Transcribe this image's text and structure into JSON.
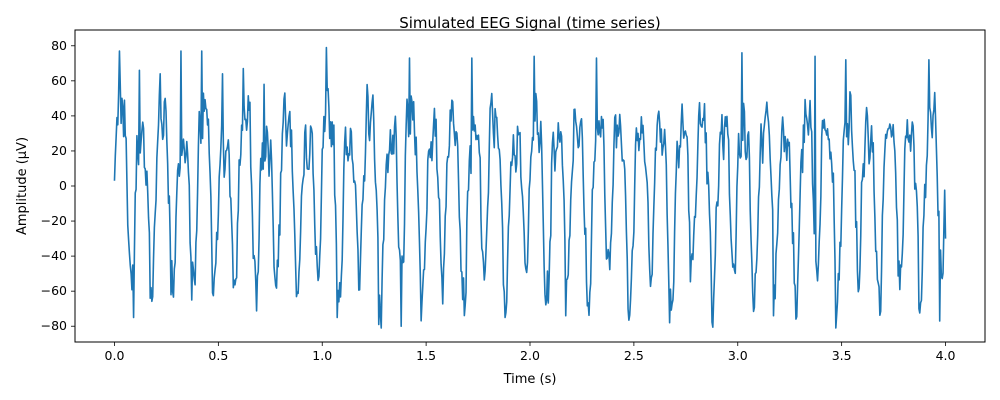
{
  "chart_data": {
    "type": "line",
    "title": "Simulated EEG Signal (time series)",
    "xlabel": "Time (s)",
    "ylabel": "Amplitude (µV)",
    "xlim": [
      -0.19,
      4.19
    ],
    "ylim": [
      -89,
      89
    ],
    "x_ticks": [
      0.0,
      0.5,
      1.0,
      1.5,
      2.0,
      2.5,
      3.0,
      3.5,
      4.0
    ],
    "x_tick_labels": [
      "0.0",
      "0.5",
      "1.0",
      "1.5",
      "2.0",
      "2.5",
      "3.0",
      "3.5",
      "4.0"
    ],
    "y_ticks": [
      -80,
      -60,
      -40,
      -20,
      0,
      20,
      40,
      60,
      80
    ],
    "y_tick_labels": [
      "−80",
      "−60",
      "−40",
      "−20",
      "0",
      "20",
      "40",
      "60",
      "80"
    ],
    "grid": false,
    "legend": "none",
    "series": [
      {
        "color": "#1f77b4",
        "sampling_rate_hz": 250,
        "t_start": 0.0,
        "t_end": 4.0,
        "key_points": [
          {
            "x": 0.0,
            "y": 3
          },
          {
            "x": 0.02,
            "y": 53
          },
          {
            "x": 0.025,
            "y": 77
          },
          {
            "x": 0.04,
            "y": 45
          },
          {
            "x": 0.06,
            "y": 2
          },
          {
            "x": 0.08,
            "y": -50
          },
          {
            "x": 0.09,
            "y": -75
          },
          {
            "x": 0.12,
            "y": 66
          },
          {
            "x": 0.17,
            "y": -64
          },
          {
            "x": 0.22,
            "y": 64
          },
          {
            "x": 0.27,
            "y": -62
          },
          {
            "x": 0.32,
            "y": 77
          },
          {
            "x": 0.37,
            "y": -65
          },
          {
            "x": 0.42,
            "y": 77
          },
          {
            "x": 0.47,
            "y": -61
          },
          {
            "x": 0.52,
            "y": 64
          },
          {
            "x": 0.57,
            "y": -58
          },
          {
            "x": 0.62,
            "y": 67
          },
          {
            "x": 0.72,
            "y": 58
          },
          {
            "x": 0.82,
            "y": 53
          },
          {
            "x": 1.02,
            "y": 79
          },
          {
            "x": 1.07,
            "y": -75
          },
          {
            "x": 1.27,
            "y": -79
          },
          {
            "x": 1.38,
            "y": -80
          },
          {
            "x": 1.42,
            "y": 73
          },
          {
            "x": 1.72,
            "y": 73
          },
          {
            "x": 2.02,
            "y": 74
          },
          {
            "x": 2.17,
            "y": -74
          },
          {
            "x": 2.32,
            "y": 73
          },
          {
            "x": 2.67,
            "y": -78
          },
          {
            "x": 3.02,
            "y": 76
          },
          {
            "x": 3.17,
            "y": -74
          },
          {
            "x": 3.37,
            "y": 74
          },
          {
            "x": 3.47,
            "y": -81
          },
          {
            "x": 3.52,
            "y": 72
          },
          {
            "x": 3.87,
            "y": -70
          },
          {
            "x": 3.92,
            "y": 72
          },
          {
            "x": 3.97,
            "y": -77
          },
          {
            "x": 3.99,
            "y": -25
          },
          {
            "x": 4.0,
            "y": -30
          }
        ]
      }
    ]
  }
}
